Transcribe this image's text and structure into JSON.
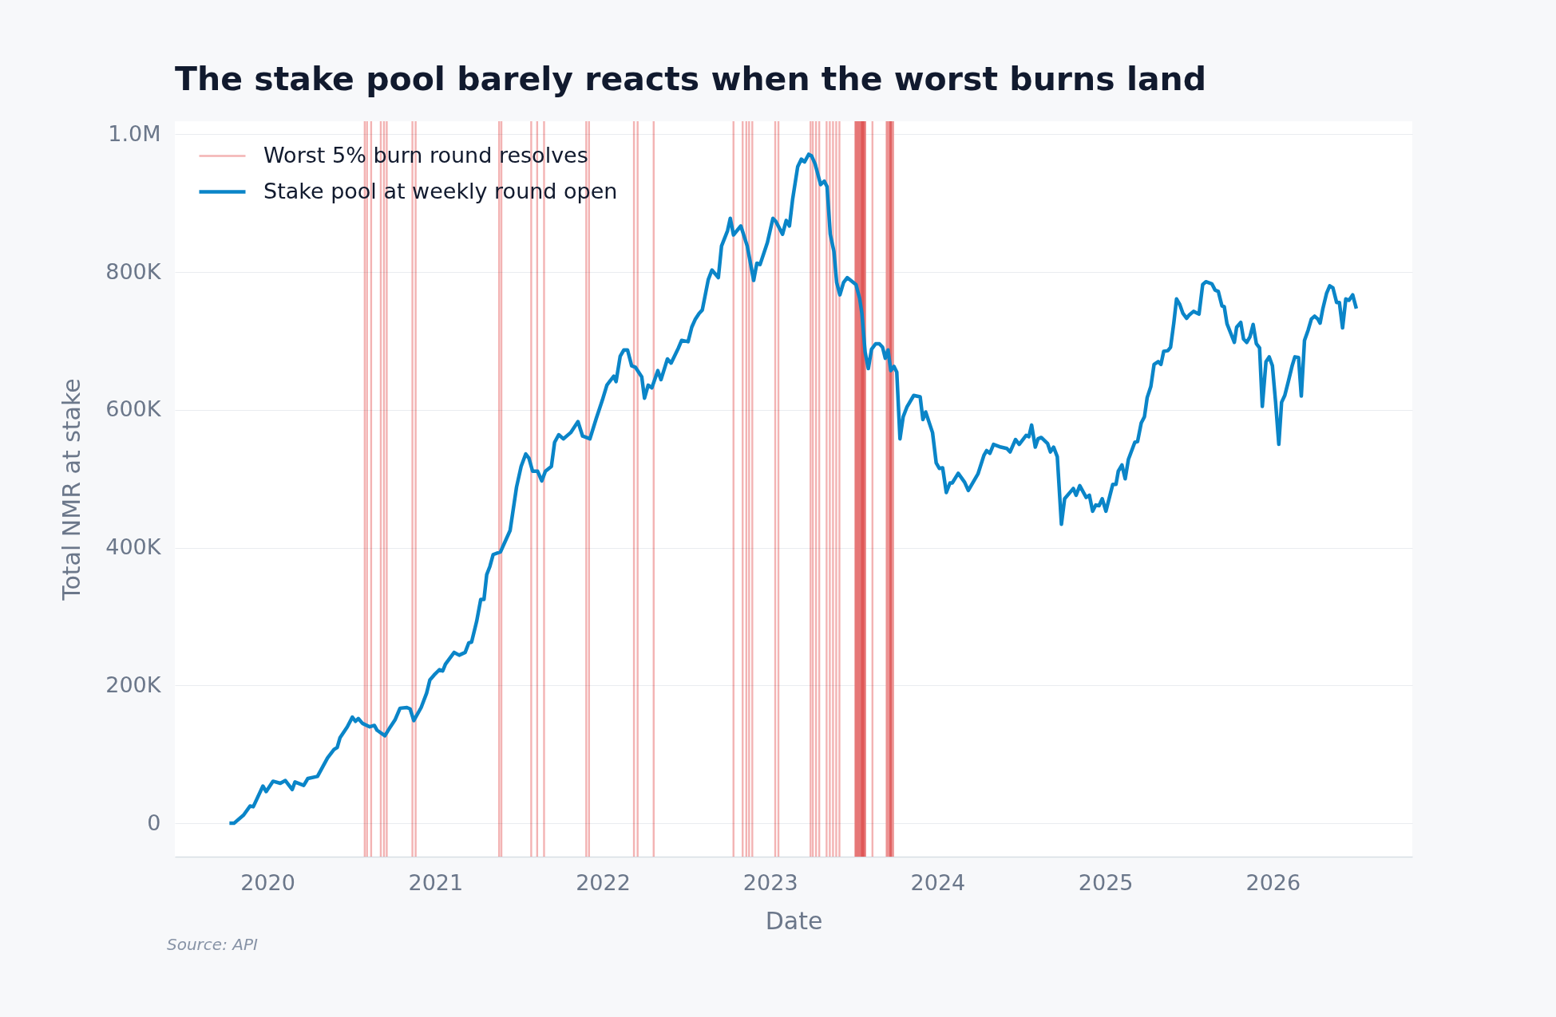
{
  "chart_data": {
    "type": "line",
    "title": "The stake pool barely reacts when the worst burns land",
    "xlabel": "Date",
    "ylabel": "Total NMR at stake",
    "xlim": [
      "2019-06-13",
      "2026-11-01"
    ],
    "xticks": [
      "2020",
      "2021",
      "2022",
      "2023",
      "2024",
      "2025",
      "2026"
    ],
    "ylim": [
      -48500,
      1019000
    ],
    "yticks": [
      0,
      {
        "value": 200000,
        "label": "200K"
      },
      {
        "value": 400000,
        "label": "400K"
      },
      {
        "value": 600000,
        "label": "600K"
      },
      {
        "value": 800000,
        "label": "800K"
      },
      {
        "value": 1000000,
        "label": "1.0M"
      }
    ],
    "grid": "y",
    "legend": "top left",
    "x": [
      "2019-10-10",
      "2019-10-20",
      "2019-11-10",
      "2019-11-24",
      "2019-12-01",
      "2019-12-22",
      "2019-12-29",
      "2020-01-13",
      "2020-01-29",
      "2020-02-09",
      "2020-02-24",
      "2020-03-01",
      "2020-03-20",
      "2020-03-29",
      "2020-04-19",
      "2020-05-11",
      "2020-05-25",
      "2020-06-01",
      "2020-06-07",
      "2020-06-23",
      "2020-07-04",
      "2020-07-11",
      "2020-07-17",
      "2020-07-26",
      "2020-08-11",
      "2020-08-21",
      "2020-08-27",
      "2020-09-13",
      "2020-09-25",
      "2020-10-05",
      "2020-10-16",
      "2020-10-31",
      "2020-11-07",
      "2020-11-15",
      "2020-12-01",
      "2020-12-13",
      "2020-12-20",
      "2020-12-29",
      "2021-01-10",
      "2021-01-17",
      "2021-01-23",
      "2021-02-11",
      "2021-02-22",
      "2021-03-07",
      "2021-03-15",
      "2021-03-21",
      "2021-04-01",
      "2021-04-10",
      "2021-04-17",
      "2021-04-23",
      "2021-04-30",
      "2021-05-07",
      "2021-05-23",
      "2021-06-13",
      "2021-06-27",
      "2021-07-07",
      "2021-07-17",
      "2021-07-24",
      "2021-08-01",
      "2021-08-12",
      "2021-08-21",
      "2021-08-29",
      "2021-09-11",
      "2021-09-18",
      "2021-09-27",
      "2021-10-07",
      "2021-10-23",
      "2021-11-08",
      "2021-11-18",
      "2021-12-04",
      "2021-12-18",
      "2021-12-31",
      "2022-01-10",
      "2022-01-25",
      "2022-01-30",
      "2022-02-08",
      "2022-02-16",
      "2022-02-24",
      "2022-03-05",
      "2022-03-13",
      "2022-03-27",
      "2022-04-02",
      "2022-04-10",
      "2022-04-18",
      "2022-05-01",
      "2022-05-08",
      "2022-05-22",
      "2022-05-30",
      "2022-06-15",
      "2022-06-22",
      "2022-07-06",
      "2022-07-14",
      "2022-07-22",
      "2022-07-30",
      "2022-08-06",
      "2022-08-19",
      "2022-08-27",
      "2022-09-10",
      "2022-09-17",
      "2022-09-30",
      "2022-10-06",
      "2022-10-13",
      "2022-10-29",
      "2022-11-12",
      "2022-11-26",
      "2022-12-03",
      "2022-12-10",
      "2022-12-26",
      "2023-01-07",
      "2023-01-13",
      "2023-01-28",
      "2023-02-05",
      "2023-02-12",
      "2023-02-19",
      "2023-03-02",
      "2023-03-10",
      "2023-03-17",
      "2023-03-26",
      "2023-04-01",
      "2023-04-09",
      "2023-04-21",
      "2023-04-29",
      "2023-05-05",
      "2023-05-12",
      "2023-05-20",
      "2023-05-26",
      "2023-06-02",
      "2023-06-10",
      "2023-06-18",
      "2023-07-07",
      "2023-07-15",
      "2023-07-20",
      "2023-07-27",
      "2023-08-03",
      "2023-08-10",
      "2023-08-19",
      "2023-08-27",
      "2023-09-03",
      "2023-09-09",
      "2023-09-15",
      "2023-09-21",
      "2023-09-28",
      "2023-10-04",
      "2023-10-11",
      "2023-10-18",
      "2023-10-26",
      "2023-11-10",
      "2023-11-24",
      "2023-11-30",
      "2023-12-06",
      "2023-12-21",
      "2023-12-29",
      "2024-01-05",
      "2024-01-12",
      "2024-01-20",
      "2024-01-28",
      "2024-02-02",
      "2024-02-15",
      "2024-02-29",
      "2024-03-08",
      "2024-03-29",
      "2024-04-11",
      "2024-04-17",
      "2024-04-24",
      "2024-05-02",
      "2024-05-18",
      "2024-05-31",
      "2024-06-07",
      "2024-06-19",
      "2024-06-27",
      "2024-07-12",
      "2024-07-18",
      "2024-07-24",
      "2024-08-01",
      "2024-08-07",
      "2024-08-14",
      "2024-08-28",
      "2024-09-03",
      "2024-09-10",
      "2024-09-18",
      "2024-09-27",
      "2024-10-04",
      "2024-10-23",
      "2024-10-29",
      "2024-11-06",
      "2024-11-20",
      "2024-11-27",
      "2024-12-04",
      "2024-12-11",
      "2024-12-18",
      "2024-12-25",
      "2025-01-02",
      "2025-01-17",
      "2025-01-24",
      "2025-01-29",
      "2025-02-06",
      "2025-02-13",
      "2025-02-20",
      "2025-03-06",
      "2025-03-12",
      "2025-03-20",
      "2025-03-27",
      "2025-04-02",
      "2025-04-10",
      "2025-04-17",
      "2025-04-26",
      "2025-05-02",
      "2025-05-08",
      "2025-05-17",
      "2025-05-23",
      "2025-05-30",
      "2025-06-05",
      "2025-06-12",
      "2025-06-19",
      "2025-06-27",
      "2025-07-03",
      "2025-07-12",
      "2025-07-24",
      "2025-08-01",
      "2025-08-08",
      "2025-08-21",
      "2025-08-28",
      "2025-09-04",
      "2025-09-12",
      "2025-09-17",
      "2025-09-23",
      "2025-10-09",
      "2025-10-14",
      "2025-10-23",
      "2025-10-29",
      "2025-11-05",
      "2025-11-12",
      "2025-11-19",
      "2025-11-26",
      "2025-12-03",
      "2025-12-09",
      "2025-12-17",
      "2025-12-24",
      "2025-12-31",
      "2026-01-07",
      "2026-01-14",
      "2026-01-20",
      "2026-01-27",
      "2026-02-04",
      "2026-02-12",
      "2026-02-18",
      "2026-02-26",
      "2026-03-04",
      "2026-03-11",
      "2026-03-19",
      "2026-03-26",
      "2026-04-02",
      "2026-04-09",
      "2026-04-14",
      "2026-04-20",
      "2026-04-28",
      "2026-05-05",
      "2026-05-12",
      "2026-05-20",
      "2026-05-26",
      "2026-06-02",
      "2026-06-09",
      "2026-06-16",
      "2026-06-24",
      "2026-07-02"
    ],
    "series": [
      {
        "name": "Stake pool at weekly round open",
        "color": "#0a85c8",
        "values": [
          0,
          0,
          12000,
          25000,
          24000,
          54000,
          46000,
          61000,
          58000,
          62000,
          49000,
          60000,
          55000,
          65000,
          68000,
          95000,
          107000,
          110000,
          124000,
          140000,
          154000,
          148000,
          152000,
          145000,
          140000,
          142000,
          135000,
          127000,
          140000,
          150000,
          167000,
          168000,
          166000,
          149000,
          168000,
          189000,
          208000,
          215000,
          223000,
          221000,
          231000,
          248000,
          244000,
          248000,
          262000,
          263000,
          293000,
          325000,
          325000,
          361000,
          373000,
          390000,
          394000,
          425000,
          488000,
          518000,
          536000,
          530000,
          511000,
          511000,
          497000,
          511000,
          518000,
          553000,
          564000,
          558000,
          567000,
          583000,
          562000,
          558000,
          588000,
          614000,
          636000,
          649000,
          641000,
          678000,
          687000,
          687000,
          664000,
          662000,
          648000,
          617000,
          636000,
          632000,
          657000,
          644000,
          674000,
          668000,
          690000,
          701000,
          699000,
          720000,
          732000,
          740000,
          745000,
          789000,
          803000,
          792000,
          838000,
          860000,
          878000,
          854000,
          867000,
          838000,
          788000,
          813000,
          811000,
          843000,
          878000,
          874000,
          855000,
          875000,
          867000,
          906000,
          953000,
          964000,
          960000,
          971000,
          969000,
          957000,
          927000,
          932000,
          924000,
          855000,
          830000,
          785000,
          767000,
          785000,
          792000,
          782000,
          762000,
          740000,
          684000,
          660000,
          688000,
          696000,
          696000,
          691000,
          675000,
          687000,
          657000,
          663000,
          655000,
          558000,
          590000,
          604000,
          621000,
          619000,
          586000,
          597000,
          567000,
          523000,
          515000,
          516000,
          480000,
          494000,
          494000,
          508000,
          495000,
          483000,
          507000,
          534000,
          541000,
          537000,
          550000,
          546000,
          544000,
          539000,
          557000,
          550000,
          563000,
          561000,
          578000,
          546000,
          558000,
          560000,
          551000,
          539000,
          546000,
          532000,
          434000,
          471000,
          486000,
          476000,
          490000,
          473000,
          476000,
          453000,
          462000,
          461000,
          471000,
          453000,
          492000,
          492000,
          511000,
          520000,
          500000,
          528000,
          553000,
          554000,
          581000,
          590000,
          618000,
          634000,
          666000,
          670000,
          666000,
          685000,
          686000,
          691000,
          726000,
          761000,
          753000,
          740000,
          733000,
          738000,
          743000,
          739000,
          782000,
          786000,
          783000,
          774000,
          772000,
          751000,
          750000,
          725000,
          698000,
          720000,
          727000,
          703000,
          698000,
          706000,
          724000,
          696000,
          690000,
          605000,
          670000,
          677000,
          664000,
          611000,
          550000,
          611000,
          621000,
          642000,
          664000,
          677000,
          676000,
          620000,
          701000,
          716000,
          732000,
          736000,
          732000,
          726000,
          747000,
          769000,
          780000,
          777000,
          756000,
          756000,
          719000,
          761000,
          759000,
          767000,
          747000
        ]
      }
    ],
    "ref_lines": [
      {
        "axis": "x",
        "value": "2020-07-31",
        "label": "Worst 5% burn round resolves",
        "color": "#f3b3b3"
      },
      {
        "axis": "x",
        "value": "2020-08-05"
      },
      {
        "axis": "x",
        "value": "2020-08-14"
      },
      {
        "axis": "x",
        "value": "2020-09-04"
      },
      {
        "axis": "x",
        "value": "2020-09-11"
      },
      {
        "axis": "x",
        "value": "2020-09-17"
      },
      {
        "axis": "x",
        "value": "2020-11-12"
      },
      {
        "axis": "x",
        "value": "2020-11-19"
      },
      {
        "axis": "x",
        "value": "2021-05-20"
      },
      {
        "axis": "x",
        "value": "2021-05-25"
      },
      {
        "axis": "x",
        "value": "2021-07-29"
      },
      {
        "axis": "x",
        "value": "2021-08-11"
      },
      {
        "axis": "x",
        "value": "2021-08-26"
      },
      {
        "axis": "x",
        "value": "2021-11-26"
      },
      {
        "axis": "x",
        "value": "2021-12-02"
      },
      {
        "axis": "x",
        "value": "2022-03-10"
      },
      {
        "axis": "x",
        "value": "2022-03-18"
      },
      {
        "axis": "x",
        "value": "2022-04-22"
      },
      {
        "axis": "x",
        "value": "2022-10-13"
      },
      {
        "axis": "x",
        "value": "2022-11-02"
      },
      {
        "axis": "x",
        "value": "2022-11-10"
      },
      {
        "axis": "x",
        "value": "2022-11-16"
      },
      {
        "axis": "x",
        "value": "2022-11-23"
      },
      {
        "axis": "x",
        "value": "2023-01-12"
      },
      {
        "axis": "x",
        "value": "2023-01-19"
      },
      {
        "axis": "x",
        "value": "2023-03-30"
      },
      {
        "axis": "x",
        "value": "2023-04-04"
      },
      {
        "axis": "x",
        "value": "2023-04-11"
      },
      {
        "axis": "x",
        "value": "2023-04-18"
      },
      {
        "axis": "x",
        "value": "2023-05-04"
      },
      {
        "axis": "x",
        "value": "2023-05-11"
      },
      {
        "axis": "x",
        "value": "2023-05-18"
      },
      {
        "axis": "x",
        "value": "2023-05-25"
      },
      {
        "axis": "x",
        "value": "2023-06-01"
      },
      {
        "axis": "x",
        "value": "2023-08-12"
      }
    ],
    "bands": [
      {
        "axis": "x",
        "from": "2023-07-04",
        "to": "2023-07-29",
        "color": "#e67777"
      },
      {
        "axis": "x",
        "from": "2023-07-18",
        "to": "2023-07-25",
        "color": "#df5656"
      },
      {
        "axis": "x",
        "from": "2023-09-10",
        "to": "2023-09-28",
        "color": "#ec9292"
      },
      {
        "axis": "x",
        "from": "2023-09-18",
        "to": "2023-09-23",
        "color": "#e06262"
      }
    ],
    "annotations": [
      "Source: API"
    ]
  }
}
